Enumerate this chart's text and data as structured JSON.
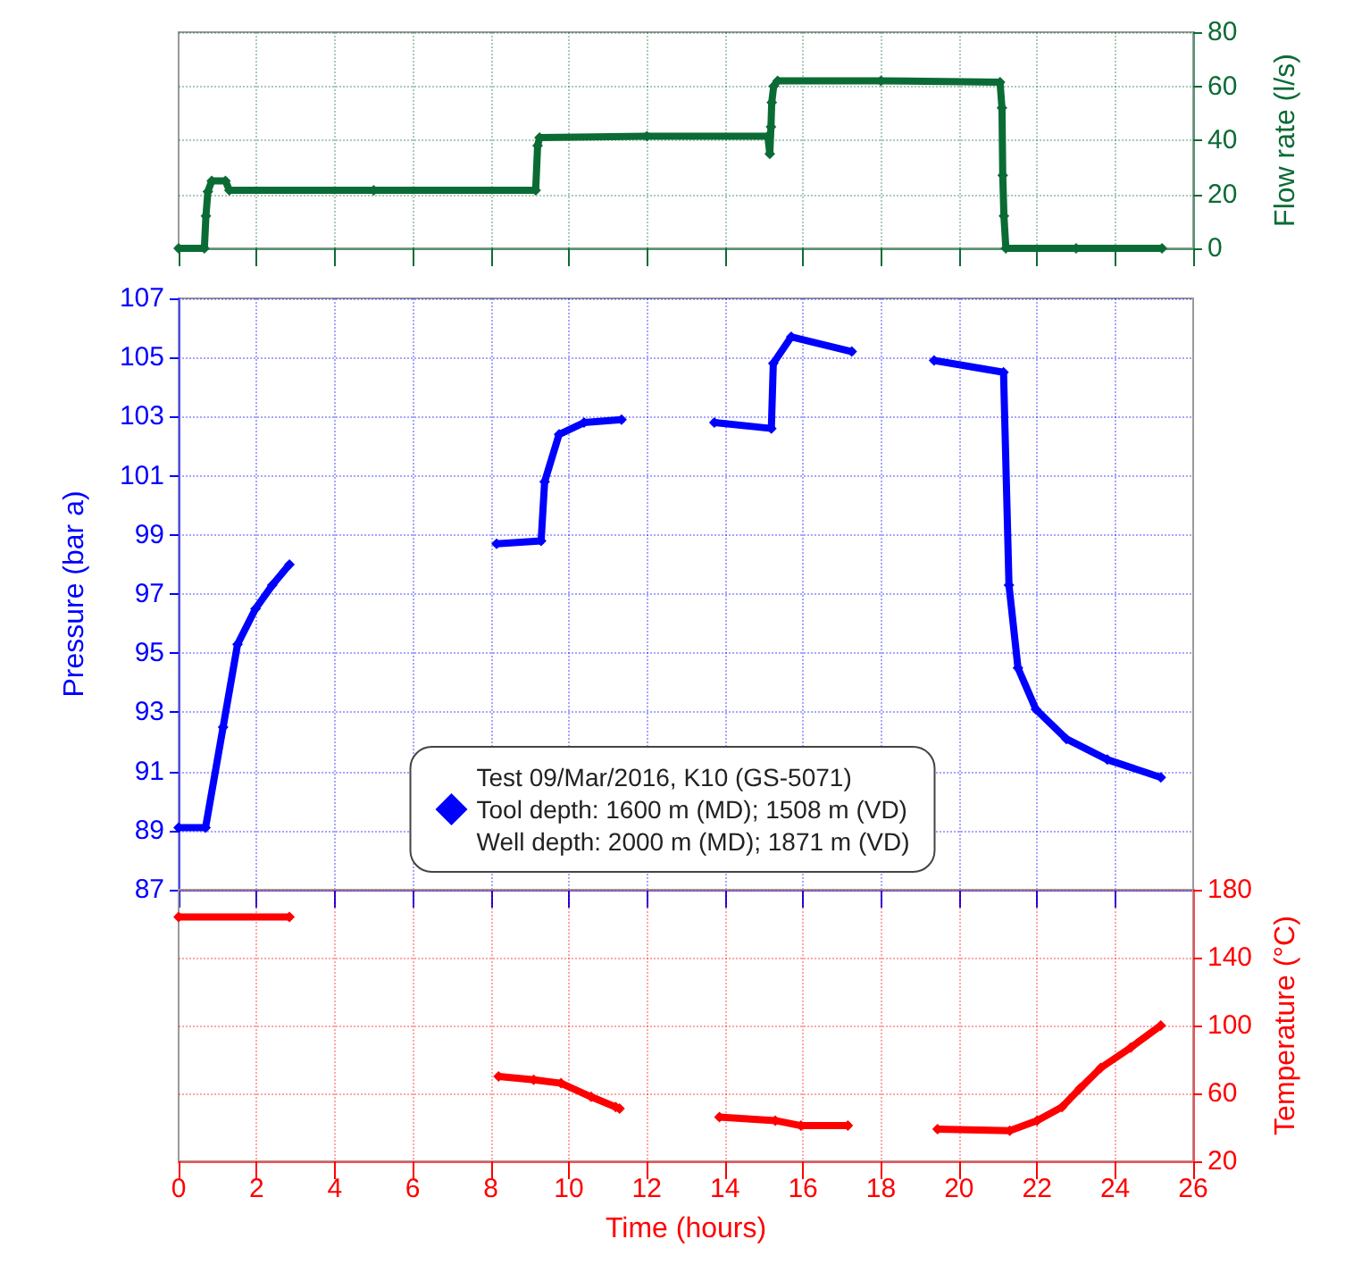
{
  "chart_data": [
    {
      "type": "line",
      "x": [
        0,
        0.66,
        0.7,
        0.75,
        0.85,
        1.2,
        1.3,
        5,
        9.15,
        9.2,
        9.25,
        12,
        15.1,
        15.15,
        15.18,
        15.2,
        15.25,
        15.35,
        18,
        21.05,
        21.1,
        21.12,
        21.15,
        21.2,
        23,
        25.2
      ],
      "series": [
        {
          "color": "#0b6b35",
          "values": [
            0,
            0,
            12,
            21,
            25,
            25,
            21.5,
            21.5,
            21.5,
            38,
            41,
            41.5,
            41.5,
            35,
            45,
            54,
            60,
            62,
            62,
            61.5,
            52,
            27,
            12,
            0,
            0,
            0
          ]
        }
      ],
      "xlim": [
        0,
        26
      ],
      "xticks": [
        0,
        2,
        4,
        6,
        8,
        10,
        12,
        14,
        16,
        18,
        20,
        22,
        24,
        26
      ],
      "ylim": [
        0,
        80
      ],
      "yticks": [
        0,
        20,
        40,
        60,
        80
      ],
      "ylabel": "Flow rate (l/s)",
      "tick_labels": "y",
      "grid": true,
      "marker": "diamond",
      "line_style": "solid"
    },
    {
      "type": "line",
      "x": [
        0,
        0.69,
        1.14,
        1.51,
        1.97,
        2.4,
        2.84,
        5.5,
        8.15,
        9.29,
        9.38,
        9.75,
        10.39,
        11.35,
        12.5,
        13.73,
        15.19,
        15.24,
        15.7,
        17.25,
        18.3,
        19.36,
        21.14,
        21.28,
        21.51,
        21.97,
        22.75,
        23.8,
        25.17
      ],
      "series": [
        {
          "name": "Test 09/Mar/2016, K10 (GS-5071)\nTool depth: 1600 m (MD); 1508 m (VD)\nWell depth: 2000 m (MD); 1871 m (VD)",
          "color": "#0000ff",
          "values": [
            89.1,
            89.1,
            92.5,
            95.3,
            96.5,
            97.3,
            98.0,
            null,
            98.7,
            98.8,
            100.8,
            102.4,
            102.8,
            102.9,
            null,
            102.8,
            102.6,
            104.8,
            105.7,
            105.2,
            null,
            104.9,
            104.5,
            97.3,
            94.5,
            93.1,
            92.1,
            91.4,
            90.8
          ]
        }
      ],
      "xlim": [
        0,
        26
      ],
      "xticks": [
        0,
        2,
        4,
        6,
        8,
        10,
        12,
        14,
        16,
        18,
        20,
        22,
        24,
        26
      ],
      "ylim": [
        87,
        107
      ],
      "yticks": [
        87,
        89,
        91,
        93,
        95,
        97,
        99,
        101,
        103,
        105,
        107
      ],
      "ylabel": "Pressure (bar a)",
      "tick_labels": "y",
      "grid": true,
      "legend": "bottom",
      "marker": "diamond",
      "line_style": "solid"
    },
    {
      "type": "line",
      "x": [
        0,
        2.84,
        5,
        8.2,
        9.1,
        9.8,
        10.57,
        11.2,
        11.3,
        12.5,
        13.86,
        15.29,
        15.95,
        17.15,
        18.3,
        19.45,
        21.3,
        22.0,
        22.64,
        23.1,
        23.63,
        24.4,
        25.17
      ],
      "series": [
        {
          "color": "#ff0000",
          "values": [
            164,
            164,
            null,
            70,
            68,
            66,
            58,
            52,
            51,
            null,
            46,
            44,
            41,
            41,
            null,
            39,
            38,
            44,
            52,
            63,
            75,
            87,
            100
          ]
        }
      ],
      "xlim": [
        0,
        26
      ],
      "xticks": [
        0,
        2,
        4,
        6,
        8,
        10,
        12,
        14,
        16,
        18,
        20,
        22,
        24,
        26
      ],
      "xlabel": "Time (hours)",
      "ylim": [
        20,
        180
      ],
      "yticks": [
        20,
        60,
        100,
        140,
        180
      ],
      "ylabel": "Temperature (°C)",
      "grid": true,
      "marker": "diamond",
      "line_style": "solid"
    }
  ]
}
